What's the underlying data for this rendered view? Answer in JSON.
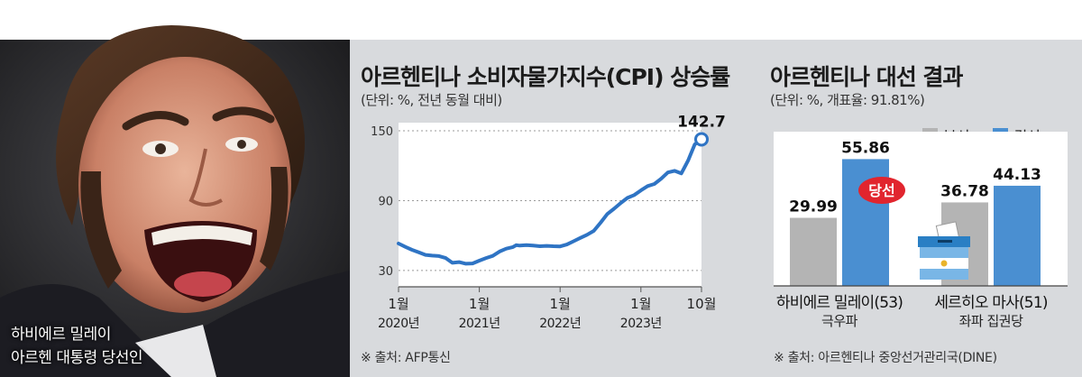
{
  "photo": {
    "caption_name": "하비에르 밀레이",
    "caption_role": "아르헨 대통령 당선인"
  },
  "left_panel": {
    "title": "아르헨티나 소비자물가지수(CPI) 상승률",
    "unit": "(단위: %, 전년 동월 대비)",
    "source": "※ 출처: AFP통신"
  },
  "right_panel": {
    "title": "아르헨티나 대선 결과",
    "unit": "(단위: %, 개표율: 91.81%)",
    "source": "※ 출처: 아르헨티나 중앙선거관리국(DINE)",
    "winner_badge": "당선"
  },
  "colors": {
    "line": "#2f74c4",
    "first_round": "#b4b4b4",
    "runoff": "#4a8fd1",
    "badge": "#e1252e",
    "plot_bg": "#ffffff"
  },
  "chart_data": [
    {
      "type": "line",
      "title": "아르헨티나 소비자물가지수(CPI) 상승률",
      "ylabel": "",
      "xlabel": "",
      "yticks": [
        30,
        90,
        150
      ],
      "ylim": [
        16,
        157
      ],
      "xlim": [
        0,
        45
      ],
      "grid": "horizontal dotted",
      "x_tick_labels": [
        {
          "x": 0,
          "month": "1월",
          "year": "2020년"
        },
        {
          "x": 12,
          "month": "1월",
          "year": "2021년"
        },
        {
          "x": 24,
          "month": "1월",
          "year": "2022년"
        },
        {
          "x": 36,
          "month": "1월",
          "year": "2023년"
        },
        {
          "x": 45,
          "month": "10월",
          "year": ""
        }
      ],
      "end_label": "142.7",
      "x": [
        0,
        1,
        2,
        3,
        4,
        5,
        6,
        7,
        8,
        9,
        10,
        11,
        12,
        13,
        14,
        15,
        16,
        17,
        17.5,
        18,
        19,
        20,
        21,
        22,
        23,
        24,
        25,
        26,
        27,
        28,
        29,
        30,
        31,
        32,
        33,
        34,
        35,
        36,
        37,
        38,
        39,
        40,
        41,
        42,
        43,
        44,
        45
      ],
      "values": [
        53.2,
        50.3,
        47.8,
        45.6,
        43.4,
        42.8,
        42.4,
        40.7,
        36.6,
        37.2,
        35.8,
        36.1,
        38.5,
        40.7,
        42.6,
        46.3,
        48.8,
        50.2,
        51.8,
        51.4,
        51.8,
        51.4,
        50.9,
        51.2,
        50.9,
        50.7,
        52.3,
        55.1,
        58.0,
        60.7,
        64.0,
        71.0,
        78.5,
        83.0,
        88.0,
        92.4,
        94.8,
        98.8,
        102.5,
        104.3,
        108.8,
        114.2,
        115.6,
        113.4,
        124.4,
        138.3,
        142.7
      ]
    },
    {
      "type": "bar",
      "title": "아르헨티나 대선 결과",
      "ylim": [
        0,
        60
      ],
      "categories": [
        {
          "name": "하비에르 밀레이(53)",
          "sub": "극우파"
        },
        {
          "name": "세르히오 마사(51)",
          "sub": "좌파 집권당"
        }
      ],
      "series": [
        {
          "name": "본선",
          "values": [
            29.99,
            36.78
          ]
        },
        {
          "name": "결선",
          "values": [
            55.86,
            44.13
          ]
        }
      ],
      "value_labels": [
        [
          "29.99",
          "36.78"
        ],
        [
          "55.86",
          "44.13"
        ]
      ],
      "winner": "하비에르 밀레이(53)"
    }
  ]
}
